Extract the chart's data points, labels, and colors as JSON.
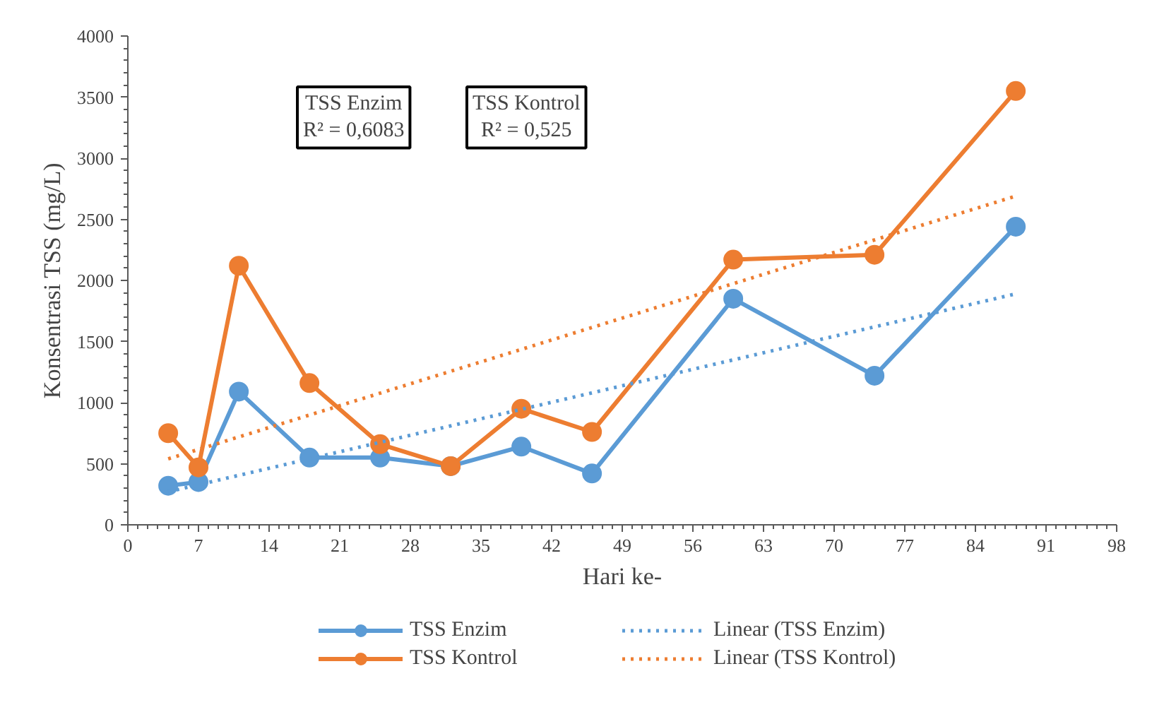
{
  "chart_data": {
    "type": "line",
    "xlabel": "Hari ke-",
    "ylabel": "Konsentrasi TSS (mg/L)",
    "xlim": [
      0,
      98
    ],
    "xticks": [
      0,
      7,
      14,
      21,
      28,
      35,
      42,
      49,
      56,
      63,
      70,
      77,
      84,
      91,
      98
    ],
    "ylim": [
      0,
      4000
    ],
    "yticks": [
      0,
      500,
      1000,
      1500,
      2000,
      2500,
      3000,
      3500,
      4000
    ],
    "grid": false,
    "legend": "bottom",
    "marker": "circle",
    "line_style": "solid",
    "annotations": [
      "TSS Enzim\nR² = 0,6083",
      "TSS Kontrol\nR² = 0,525"
    ],
    "series": [
      {
        "name": "TSS Enzim",
        "color": "#5b9bd5",
        "x": [
          4,
          7,
          11,
          18,
          25,
          32,
          39,
          46,
          60,
          74,
          88
        ],
        "values": [
          320,
          350,
          1090,
          550,
          550,
          480,
          640,
          420,
          1850,
          1220,
          2440
        ]
      },
      {
        "name": "TSS Kontrol",
        "color": "#ed7d31",
        "x": [
          4,
          7,
          11,
          18,
          25,
          32,
          39,
          46,
          60,
          74,
          88
        ],
        "values": [
          750,
          470,
          2120,
          1160,
          660,
          480,
          950,
          760,
          2170,
          2210,
          3550
        ]
      },
      {
        "name": "Linear (TSS Enzim)",
        "color": "#5b9bd5",
        "type": "line",
        "marker": "none",
        "line_style": "dotted",
        "x": [
          4,
          88
        ],
        "values": [
          270,
          1890
        ]
      },
      {
        "name": "Linear (TSS Kontrol)",
        "color": "#ed7d31",
        "type": "line",
        "marker": "none",
        "line_style": "dotted",
        "x": [
          4,
          88
        ],
        "values": [
          540,
          2690
        ]
      }
    ]
  }
}
